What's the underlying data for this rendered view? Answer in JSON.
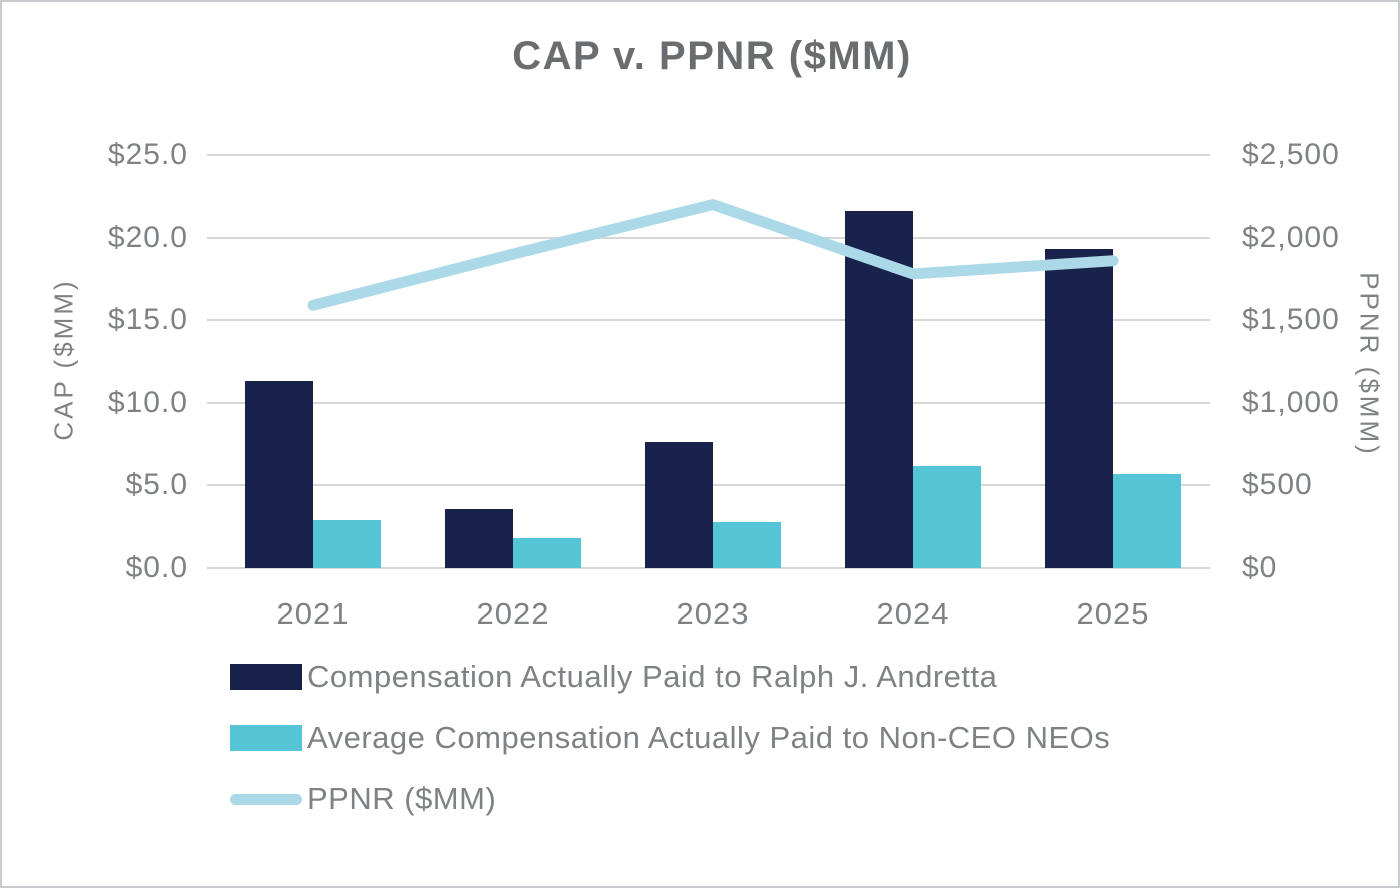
{
  "chart_data": {
    "type": "bar+line combo",
    "title": "CAP v. PPNR ($MM)",
    "categories": [
      "2021",
      "2022",
      "2023",
      "2024",
      "2025"
    ],
    "series": [
      {
        "name": "Compensation Actually Paid to Ralph J. Andretta",
        "type": "bar",
        "axis": "left",
        "color": "#19224b",
        "values": [
          11.3,
          3.6,
          7.6,
          21.6,
          19.3
        ]
      },
      {
        "name": "Average Compensation Actually Paid to Non-CEO NEOs",
        "type": "bar",
        "axis": "left",
        "color": "#55c5d6",
        "values": [
          2.9,
          1.8,
          2.8,
          6.2,
          5.7
        ]
      },
      {
        "name": "PPNR ($MM)",
        "type": "line",
        "axis": "right",
        "color": "#abd9e8",
        "values": [
          1590,
          1900,
          2200,
          1780,
          1860
        ]
      }
    ],
    "axes": {
      "left": {
        "title": "CAP ($MM)",
        "ticks": [
          "$0.0",
          "$5.0",
          "$10.0",
          "$15.0",
          "$20.0",
          "$25.0"
        ],
        "range": [
          0,
          25
        ]
      },
      "right": {
        "title": "PPNR ($MM)",
        "ticks": [
          "$0",
          "$500",
          "$1,000",
          "$1,500",
          "$2,000",
          "$2,500"
        ],
        "range": [
          0,
          2500
        ]
      }
    },
    "grid": true,
    "legend_position": "bottom-left",
    "palette": {
      "title_text": "#6a6d70",
      "axis_text": "#7f8285",
      "gridline": "#d6d6d6",
      "canvas_border": "#c9ccce",
      "background": "#ffffff"
    }
  }
}
